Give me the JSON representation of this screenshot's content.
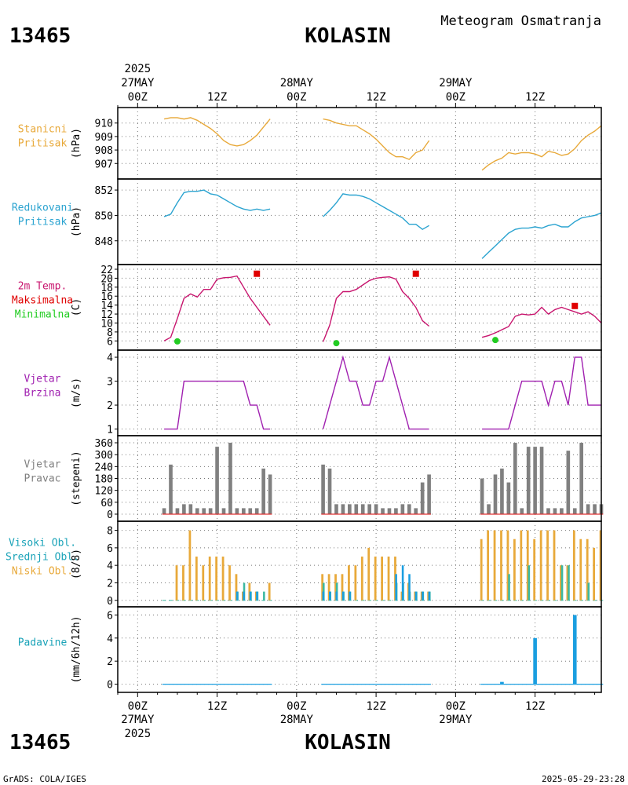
{
  "header": {
    "station_id": "13465",
    "station_name": "KOLASIN",
    "product_title": "Meteogram Osmatranja"
  },
  "footer": {
    "station_id": "13465",
    "station_name": "KOLASIN",
    "credit": "GrADS: COLA/IGES",
    "timestamp": "2025-05-29-23:28"
  },
  "time_axis": {
    "year": "2025",
    "tick_labels": [
      "00Z",
      "12Z",
      "00Z",
      "12Z",
      "00Z",
      "12Z"
    ],
    "tick_hours": [
      0,
      12,
      24,
      36,
      48,
      60
    ],
    "date_labels": [
      {
        "hour": 0,
        "label": "27MAY"
      },
      {
        "hour": 24,
        "label": "28MAY"
      },
      {
        "hour": 48,
        "label": "29MAY"
      }
    ],
    "range_hours": [
      -3,
      70
    ]
  },
  "chart_data": [
    {
      "id": "station-pressure",
      "type": "line",
      "labels": [
        "Stanicni",
        "Pritisak"
      ],
      "unit": "(hPa)",
      "color": "#e8a93a",
      "ylim": [
        906.2,
        910.8
      ],
      "yticks": [
        907,
        908,
        909,
        910
      ],
      "segments": [
        {
          "x": [
            4,
            5,
            6,
            7,
            8,
            9,
            10,
            11,
            12,
            13,
            14,
            15,
            16,
            17,
            18,
            19,
            20
          ],
          "y": [
            910.3,
            910.4,
            910.4,
            910.3,
            910.4,
            910.2,
            909.9,
            909.6,
            909.2,
            908.7,
            908.4,
            908.3,
            908.4,
            908.7,
            909.1,
            909.7,
            910.3
          ]
        },
        {
          "x": [
            28,
            29,
            30,
            31,
            32,
            33,
            34,
            35,
            36,
            37,
            38,
            39,
            40,
            41,
            42,
            43,
            44
          ],
          "y": [
            910.3,
            910.2,
            910.0,
            909.9,
            909.8,
            909.8,
            909.5,
            909.2,
            908.8,
            908.3,
            907.8,
            907.5,
            907.5,
            907.3,
            907.8,
            908.0,
            908.7
          ]
        },
        {
          "x": [
            52,
            53,
            54,
            55,
            56,
            57,
            58,
            59,
            60,
            61,
            62,
            63,
            64,
            65,
            66,
            67,
            68,
            69,
            70
          ],
          "y": [
            906.5,
            906.9,
            907.2,
            907.4,
            907.8,
            907.7,
            907.8,
            907.8,
            907.7,
            907.5,
            907.9,
            907.8,
            907.6,
            907.7,
            908.1,
            908.7,
            909.1,
            909.4,
            909.8
          ]
        }
      ]
    },
    {
      "id": "reduced-pressure",
      "type": "line",
      "labels": [
        "Redukovani",
        "Pritisak"
      ],
      "unit": "(hPa)",
      "color": "#2aa3d0",
      "ylim": [
        846.5,
        852.5
      ],
      "yticks": [
        848,
        850,
        852
      ],
      "segments": [
        {
          "x": [
            4,
            5,
            6,
            7,
            8,
            9,
            10,
            11,
            12,
            13,
            14,
            15,
            16,
            17,
            18,
            19,
            20
          ],
          "y": [
            849.9,
            850.1,
            851.0,
            851.8,
            851.9,
            851.9,
            852.0,
            851.7,
            851.6,
            851.3,
            851.0,
            850.7,
            850.5,
            850.4,
            850.5,
            850.4,
            850.5
          ]
        },
        {
          "x": [
            28,
            29,
            30,
            31,
            32,
            33,
            34,
            35,
            36,
            37,
            38,
            39,
            40,
            41,
            42,
            43,
            44
          ],
          "y": [
            849.9,
            850.4,
            851.0,
            851.7,
            851.6,
            851.6,
            851.5,
            851.3,
            851.0,
            850.7,
            850.4,
            850.1,
            849.8,
            849.3,
            849.3,
            848.9,
            849.2
          ]
        },
        {
          "x": [
            52,
            53,
            54,
            55,
            56,
            57,
            58,
            59,
            60,
            61,
            62,
            63,
            64,
            65,
            66,
            67,
            68,
            69,
            70
          ],
          "y": [
            846.6,
            847.1,
            847.6,
            848.1,
            848.6,
            848.9,
            849.0,
            849.0,
            849.1,
            849.0,
            849.2,
            849.3,
            849.1,
            849.1,
            849.5,
            849.8,
            849.9,
            850.0,
            850.2
          ]
        }
      ]
    },
    {
      "id": "temperature",
      "type": "line",
      "labels": [
        "2m Temp.",
        "Maksimalna",
        "Minimalna"
      ],
      "label_colors": [
        "#c8156e",
        "#e00000",
        "#22cc22"
      ],
      "unit": "(C)",
      "color": "#c8156e",
      "ylim": [
        5,
        22
      ],
      "yticks": [
        6,
        8,
        10,
        12,
        14,
        16,
        18,
        20,
        22
      ],
      "segments": [
        {
          "x": [
            4,
            5,
            6,
            7,
            8,
            9,
            10,
            11,
            12,
            13,
            14,
            15,
            16,
            17,
            18,
            19,
            20
          ],
          "y": [
            6.0,
            6.8,
            11.0,
            15.5,
            16.5,
            15.8,
            17.5,
            17.5,
            19.8,
            20.1,
            20.2,
            20.5,
            18.0,
            15.5,
            13.5,
            11.5,
            9.5
          ]
        },
        {
          "x": [
            28,
            29,
            30,
            31,
            32,
            33,
            34,
            35,
            36,
            37,
            38,
            39,
            40,
            41,
            42,
            43,
            44
          ],
          "y": [
            5.8,
            9.5,
            15.5,
            17.0,
            17.0,
            17.5,
            18.5,
            19.5,
            20.0,
            20.2,
            20.3,
            19.8,
            17.0,
            15.5,
            13.5,
            10.5,
            9.3
          ]
        },
        {
          "x": [
            52,
            53,
            54,
            55,
            56,
            57,
            58,
            59,
            60,
            61,
            62,
            63,
            64,
            65,
            66,
            67,
            68,
            69,
            70
          ],
          "y": [
            6.8,
            7.2,
            7.8,
            8.5,
            9.2,
            11.5,
            12.0,
            11.8,
            12.0,
            13.5,
            12.0,
            13.0,
            13.5,
            13.0,
            12.5,
            12.0,
            12.5,
            11.5,
            10.0
          ]
        }
      ],
      "max_points": [
        {
          "x": 18,
          "y": 21
        },
        {
          "x": 42,
          "y": 21
        },
        {
          "x": 66,
          "y": 13.8
        }
      ],
      "min_points": [
        {
          "x": 6,
          "y": 5.9
        },
        {
          "x": 30,
          "y": 5.5
        },
        {
          "x": 54,
          "y": 6.2
        }
      ]
    },
    {
      "id": "wind-speed",
      "type": "line",
      "labels": [
        "Vjetar",
        "Brzina"
      ],
      "unit": "(m/s)",
      "color": "#a020b0",
      "ylim": [
        0.92,
        4.1
      ],
      "yticks": [
        1,
        2,
        3,
        4
      ],
      "segments": [
        {
          "x": [
            4,
            5,
            6,
            7,
            8,
            9,
            10,
            11,
            12,
            13,
            14,
            15,
            16,
            17,
            18,
            19,
            20
          ],
          "y": [
            1,
            1,
            1,
            3,
            3,
            3,
            3,
            3,
            3,
            3,
            3,
            3,
            3,
            2,
            2,
            1,
            1
          ]
        },
        {
          "x": [
            28,
            29,
            30,
            31,
            32,
            33,
            34,
            35,
            36,
            37,
            38,
            39,
            40,
            41,
            42,
            43,
            44
          ],
          "y": [
            1,
            2,
            3,
            4,
            3,
            3,
            2,
            2,
            3,
            3,
            4,
            3,
            2,
            1,
            1,
            1,
            1
          ]
        },
        {
          "x": [
            52,
            53,
            54,
            55,
            56,
            57,
            58,
            59,
            60,
            61,
            62,
            63,
            64,
            65,
            66,
            67,
            68,
            69,
            70
          ],
          "y": [
            1,
            1,
            1,
            1,
            1,
            2,
            3,
            3,
            3,
            3,
            2,
            3,
            3,
            2,
            4,
            4,
            2,
            2,
            2
          ]
        }
      ]
    },
    {
      "id": "wind-direction",
      "type": "bar",
      "labels": [
        "Vjetar",
        "Pravac"
      ],
      "unit": "(stepeni)",
      "color": "#808080",
      "baseline_color": "#e03030",
      "ylim": [
        -12,
        372
      ],
      "yticks": [
        0,
        60,
        120,
        180,
        240,
        300,
        360
      ],
      "x": [
        4,
        5,
        6,
        7,
        8,
        9,
        10,
        11,
        12,
        13,
        14,
        15,
        16,
        17,
        18,
        19,
        20,
        28,
        29,
        30,
        31,
        32,
        33,
        34,
        35,
        36,
        37,
        38,
        39,
        40,
        41,
        42,
        43,
        44,
        52,
        53,
        54,
        55,
        56,
        57,
        58,
        59,
        60,
        61,
        62,
        63,
        64,
        65,
        66,
        67,
        68,
        69,
        70
      ],
      "values": [
        30,
        250,
        30,
        50,
        50,
        30,
        30,
        30,
        340,
        30,
        360,
        30,
        30,
        30,
        30,
        230,
        200,
        250,
        230,
        50,
        50,
        50,
        50,
        50,
        50,
        50,
        30,
        30,
        30,
        50,
        50,
        30,
        160,
        200,
        180,
        50,
        200,
        230,
        160,
        360,
        30,
        340,
        340,
        340,
        30,
        30,
        30,
        320,
        30,
        360,
        50,
        50,
        50
      ]
    },
    {
      "id": "cloud-cover",
      "type": "bar",
      "labels": [
        "Visoki Obl.",
        "Srednji Obl.",
        "Niski Obl."
      ],
      "label_colors": [
        "#1aa3b8",
        "#1aa3b8",
        "#e8a93a"
      ],
      "unit": "(8/8)",
      "ylim": [
        -0.2,
        8.5
      ],
      "yticks": [
        0,
        2,
        4,
        6,
        8
      ],
      "x": [
        4,
        5,
        6,
        7,
        8,
        9,
        10,
        11,
        12,
        13,
        14,
        15,
        16,
        17,
        18,
        19,
        20,
        28,
        29,
        30,
        31,
        32,
        33,
        34,
        35,
        36,
        37,
        38,
        39,
        40,
        41,
        42,
        43,
        44,
        52,
        53,
        54,
        55,
        56,
        57,
        58,
        59,
        60,
        61,
        62,
        63,
        64,
        65,
        66,
        67,
        68,
        69,
        70
      ],
      "series": [
        {
          "name": "Visoki Obl.",
          "color": "#1a9ee0",
          "values": [
            0,
            0,
            0,
            0,
            0,
            0,
            0,
            0,
            0,
            0,
            0,
            1,
            1,
            1,
            1,
            0,
            0,
            1,
            1,
            1,
            1,
            1,
            0,
            0,
            0,
            0,
            0,
            0,
            3,
            4,
            3,
            1,
            1,
            1,
            0,
            0,
            0,
            0,
            0,
            0,
            0,
            0,
            0,
            0,
            0,
            0,
            0,
            0,
            0,
            0,
            0,
            0,
            0
          ]
        },
        {
          "name": "Srednji Obl.",
          "color": "#3cb8a0",
          "values": [
            0,
            0,
            0,
            0,
            0,
            0,
            0,
            0,
            0,
            0,
            0,
            1,
            2,
            1,
            1,
            1,
            0,
            2,
            1,
            2,
            1,
            1,
            0,
            0,
            0,
            0,
            0,
            0,
            2,
            2,
            1,
            1,
            1,
            1,
            0,
            0,
            0,
            0,
            3,
            0,
            0,
            4,
            0,
            0,
            0,
            0,
            4,
            4,
            0,
            0,
            2,
            0,
            0
          ]
        },
        {
          "name": "Niski Obl.",
          "color": "#e8a93a",
          "values": [
            0,
            0,
            4,
            4,
            8,
            5,
            4,
            5,
            5,
            5,
            4,
            3,
            1,
            2,
            1,
            0,
            2,
            3,
            3,
            3,
            3,
            4,
            4,
            5,
            6,
            5,
            5,
            5,
            5,
            1,
            2,
            1,
            1,
            1,
            7,
            8,
            8,
            8,
            8,
            7,
            8,
            8,
            7,
            8,
            8,
            8,
            4,
            4,
            8,
            7,
            7,
            6,
            8
          ]
        }
      ]
    },
    {
      "id": "precipitation",
      "type": "bar",
      "labels": [
        "Padavine"
      ],
      "label_colors": [
        "#1aa3b8"
      ],
      "unit": "(mm/6h/12h)",
      "color": "#1a9ee0",
      "ylim": [
        -0.3,
        6.3
      ],
      "yticks": [
        0,
        2,
        4,
        6
      ],
      "x": [
        4,
        5,
        6,
        7,
        8,
        9,
        10,
        11,
        12,
        13,
        14,
        15,
        16,
        17,
        18,
        19,
        20,
        28,
        29,
        30,
        31,
        32,
        33,
        34,
        35,
        36,
        37,
        38,
        39,
        40,
        41,
        42,
        43,
        44,
        52,
        53,
        54,
        55,
        56,
        57,
        58,
        59,
        60,
        61,
        62,
        63,
        64,
        65,
        66,
        67,
        68,
        69,
        70
      ],
      "values": [
        0,
        0,
        0,
        0,
        0,
        0,
        0,
        0,
        0,
        0,
        0,
        0,
        0,
        0,
        0,
        0,
        0,
        0,
        0,
        0,
        0,
        0,
        0,
        0,
        0,
        0,
        0,
        0,
        0,
        0,
        0,
        0,
        0,
        0,
        0,
        0,
        0,
        0.2,
        0,
        0,
        0,
        0,
        4.0,
        0,
        0,
        0,
        0,
        0,
        6.0,
        0,
        0,
        0,
        0
      ]
    }
  ]
}
